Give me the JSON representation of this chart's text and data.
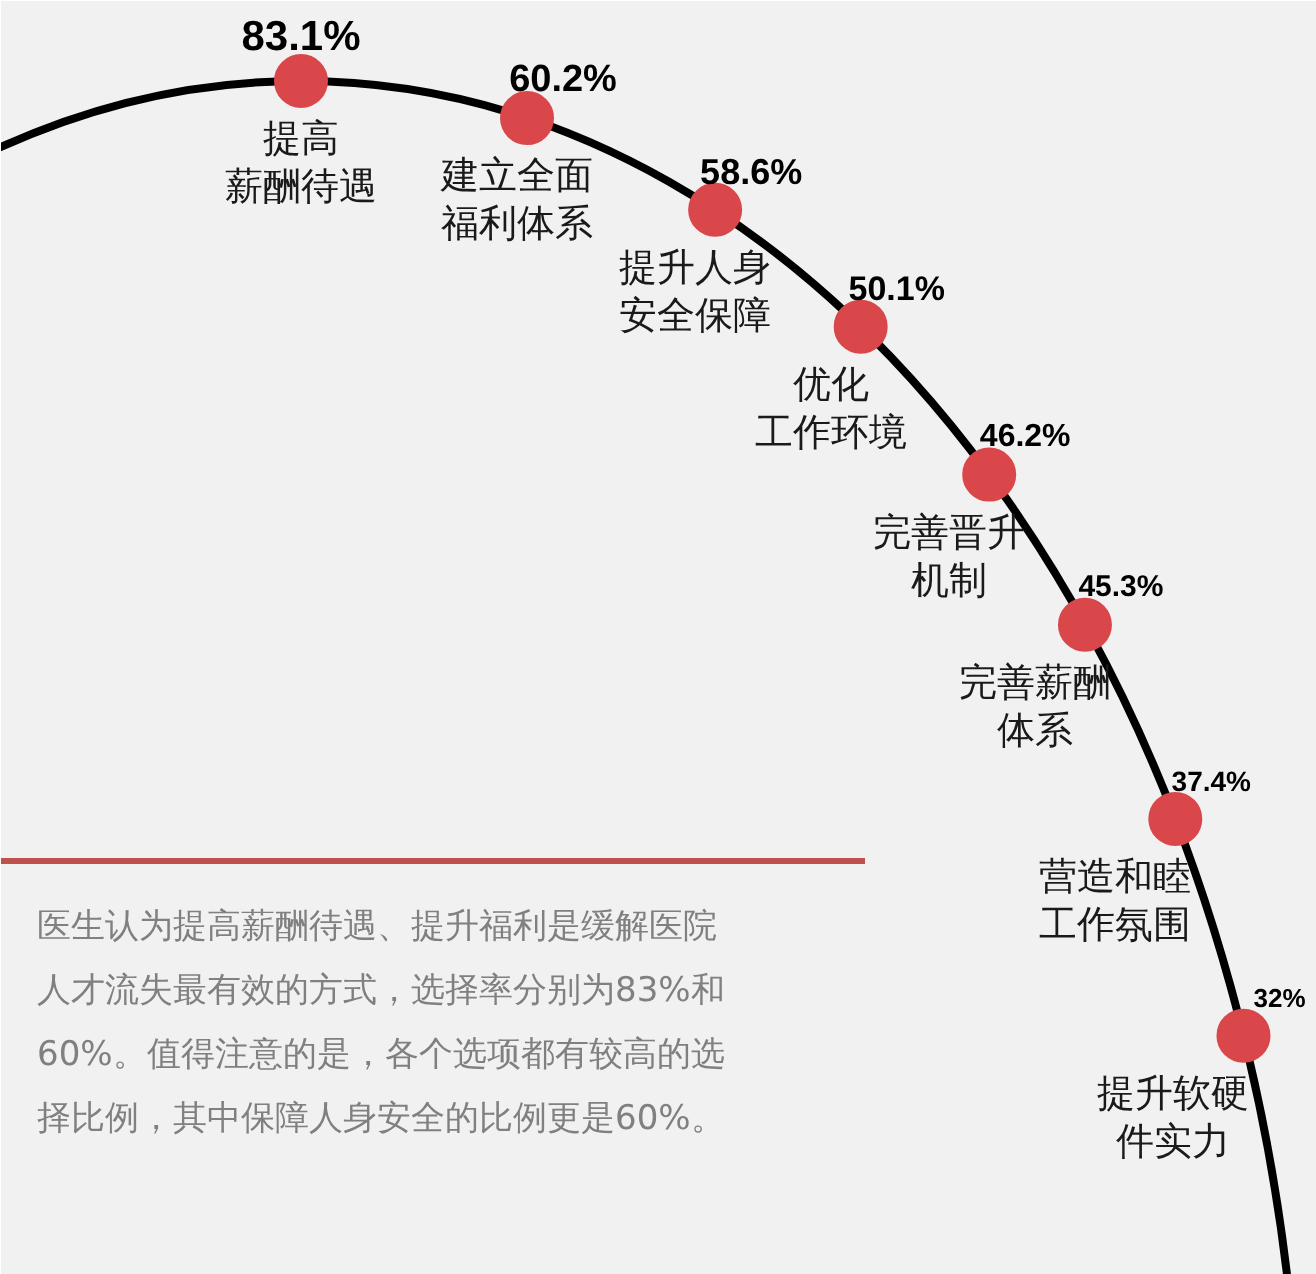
{
  "chart_data": {
    "type": "other",
    "categories": [
      "提高薪酬待遇",
      "建立全面福利体系",
      "提升人身安全保障",
      "优化工作环境",
      "完善晋升机制",
      "完善薪酬体系",
      "营造和睦工作氛围",
      "提升软硬件实力"
    ],
    "values": [
      83.1,
      60.2,
      58.6,
      50.1,
      46.2,
      45.3,
      37.4,
      32
    ],
    "value_labels": [
      "83.1%",
      "60.2%",
      "58.6%",
      "50.1%",
      "46.2%",
      "45.3%",
      "37.4%",
      "32%"
    ],
    "colors": [
      "#d9474b",
      "#d9474b",
      "#d9474b",
      "#d9474b",
      "#d9474b",
      "#d9474b",
      "#d9474b",
      "#d9474b"
    ],
    "annotations": [
      "医生认为提高薪酬待遇、提升福利是缓解医院人才流失最有效的方式，选择率分别为83%和60%。值得注意的是，各个选项都有较高的选择比例，其中保障人身安全的比例更是60%。"
    ]
  }
}
